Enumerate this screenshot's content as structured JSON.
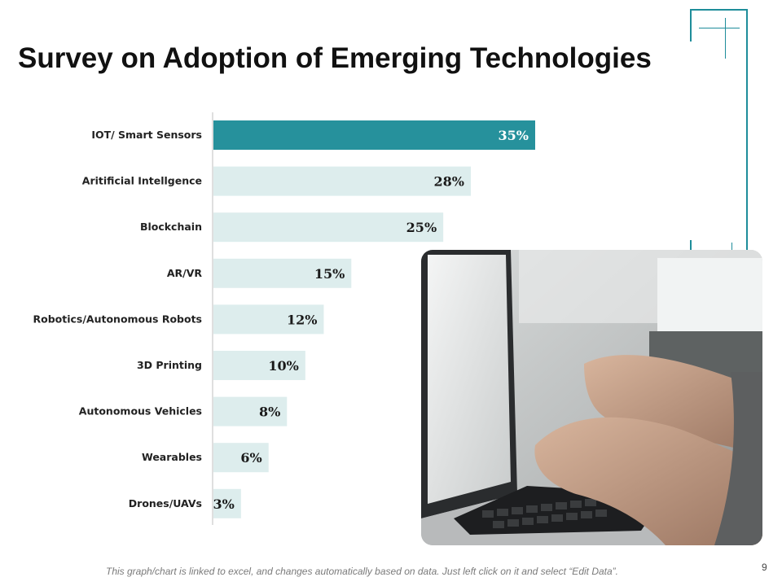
{
  "slide": {
    "title": "Survey on Adoption of Emerging Technologies",
    "footnote": "This graph/chart is linked to excel, and changes automatically  based on data.  Just left click on it and select “Edit Data”.",
    "page_number": "9",
    "photo": "person-typing-on-laptop"
  },
  "colors": {
    "accent": "#1e8d9a",
    "highlight_bar": "#26919c",
    "bar": "#ddeded",
    "axis": "#bfbfbf"
  },
  "chart_data": {
    "type": "bar",
    "orientation": "horizontal",
    "title": "Survey on Adoption of Emerging Technologies",
    "categories": [
      "IOT/ Smart Sensors",
      "Aritificial Intellgence",
      "Blockchain",
      "AR/VR",
      "Robotics/Autonomous Robots",
      "3D Printing",
      "Autonomous Vehicles",
      "Wearables",
      "Drones/UAVs"
    ],
    "values": [
      35,
      28,
      25,
      15,
      12,
      10,
      8,
      6,
      3
    ],
    "value_labels": [
      "35%",
      "28%",
      "25%",
      "15%",
      "12%",
      "10%",
      "8%",
      "6%",
      "3%"
    ],
    "highlight_index": 0,
    "xlim": [
      0,
      35
    ],
    "grid": false
  }
}
